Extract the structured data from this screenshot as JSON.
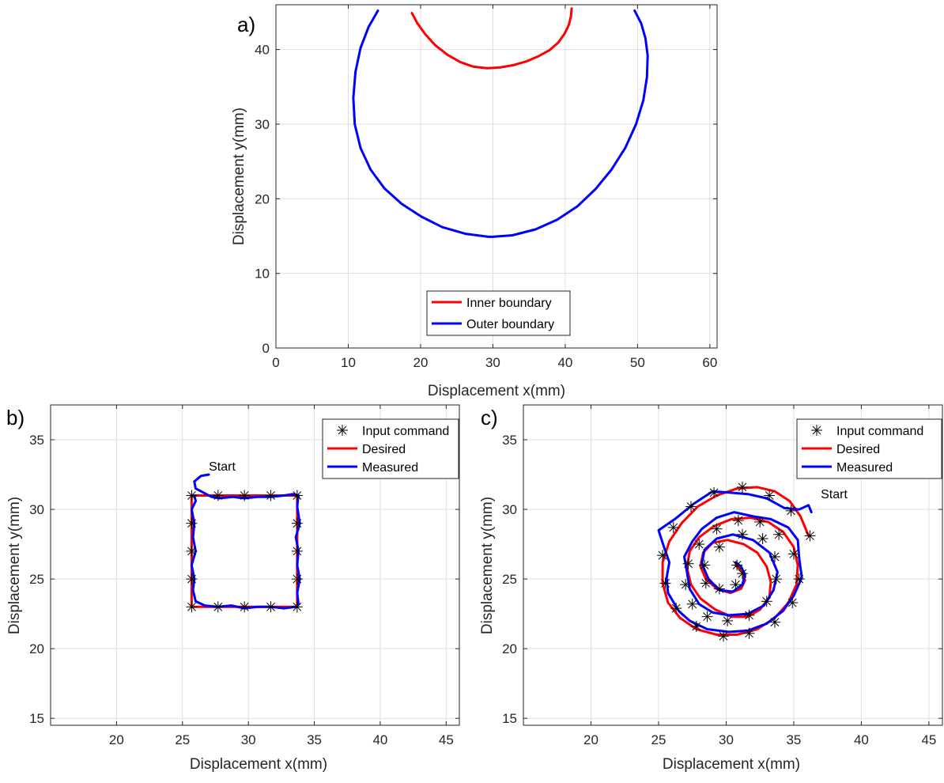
{
  "chart_data": [
    {
      "type": "line",
      "panel_label": "a)",
      "xlabel": "Displacement x(mm)",
      "ylabel": "Displacement y(mm)",
      "xlim": [
        0,
        61
      ],
      "ylim": [
        0,
        46
      ],
      "xticks": [
        0,
        10,
        20,
        30,
        40,
        50,
        60
      ],
      "yticks": [
        0,
        10,
        20,
        30,
        40
      ],
      "grid": true,
      "legend_position": "bottom-center",
      "series": [
        {
          "name": "Inner boundary",
          "color": "#ff0000",
          "x": [
            18.8,
            19.5,
            20.6,
            22.0,
            23.7,
            25.5,
            27.3,
            29.2,
            31.0,
            32.8,
            34.6,
            36.3,
            37.8,
            39.0,
            39.9,
            40.5,
            40.8,
            40.9
          ],
          "y": [
            44.9,
            43.6,
            42.1,
            40.6,
            39.3,
            38.3,
            37.7,
            37.5,
            37.6,
            37.9,
            38.4,
            39.1,
            39.9,
            40.9,
            42.1,
            43.3,
            44.5,
            45.5
          ]
        },
        {
          "name": "Outer boundary",
          "color": "#0000ff",
          "x": [
            14.1,
            12.8,
            11.7,
            11.0,
            10.7,
            10.9,
            11.7,
            13.1,
            15.0,
            17.4,
            20.1,
            23.0,
            26.2,
            29.4,
            30.0,
            32.7,
            35.9,
            38.9,
            41.7,
            44.2,
            46.4,
            48.3,
            49.8,
            50.8,
            51.3,
            51.4,
            51.1,
            50.5,
            49.6
          ],
          "y": [
            45.2,
            43.0,
            40.2,
            37.0,
            33.5,
            30.0,
            26.8,
            23.9,
            21.4,
            19.3,
            17.6,
            16.2,
            15.3,
            14.9,
            14.9,
            15.1,
            15.9,
            17.2,
            19.0,
            21.3,
            23.9,
            26.8,
            30.0,
            33.2,
            36.3,
            39.2,
            41.5,
            43.5,
            45.2
          ]
        }
      ]
    },
    {
      "type": "line",
      "panel_label": "b)",
      "xlabel": "Displacement x(mm)",
      "ylabel": "Displacement y(mm)",
      "xlim": [
        15,
        46
      ],
      "ylim": [
        14.5,
        37.5
      ],
      "xticks": [
        20,
        25,
        30,
        35,
        40,
        45
      ],
      "yticks": [
        15,
        20,
        25,
        30,
        35
      ],
      "grid": true,
      "legend_position": "top-right",
      "annotation": {
        "text": "Start",
        "x": 27.0,
        "y": 32.8
      },
      "series": [
        {
          "name": "Input command",
          "marker": "asterisk",
          "color": "#000000",
          "x": [
            25.7,
            27.7,
            29.7,
            31.7,
            33.7,
            33.7,
            33.7,
            33.7,
            33.7,
            31.7,
            29.7,
            27.7,
            25.7,
            25.7,
            25.7,
            25.7
          ],
          "y": [
            31.0,
            31.0,
            31.0,
            31.0,
            31.0,
            29.0,
            27.0,
            25.0,
            23.0,
            23.0,
            23.0,
            23.0,
            23.0,
            25.0,
            27.0,
            29.0
          ]
        },
        {
          "name": "Desired",
          "color": "#ff0000",
          "x": [
            25.7,
            33.7,
            33.7,
            25.7,
            25.7
          ],
          "y": [
            31.0,
            31.0,
            23.0,
            23.0,
            31.0
          ]
        },
        {
          "name": "Measured",
          "color": "#0000ff",
          "x": [
            27.0,
            26.4,
            25.9,
            26.0,
            26.6,
            27.2,
            27.8,
            28.8,
            29.7,
            30.7,
            31.7,
            32.7,
            33.4,
            33.8,
            33.7,
            33.9,
            33.6,
            33.8,
            33.7,
            33.9,
            33.7,
            33.8,
            33.6,
            32.7,
            31.7,
            30.7,
            29.7,
            28.7,
            27.7,
            26.7,
            26.0,
            25.8,
            25.9,
            25.7,
            26.0,
            25.8,
            25.9,
            25.7,
            26.0,
            25.9
          ],
          "y": [
            32.5,
            32.4,
            32.0,
            31.5,
            31.2,
            30.9,
            30.8,
            30.9,
            30.8,
            30.9,
            30.9,
            31.0,
            31.1,
            31.0,
            30.2,
            29.0,
            28.0,
            27.0,
            26.0,
            25.0,
            24.0,
            23.2,
            23.0,
            22.9,
            23.0,
            23.0,
            22.9,
            23.1,
            23.0,
            23.1,
            23.4,
            24.2,
            25.0,
            26.0,
            27.0,
            28.0,
            29.0,
            30.0,
            30.6,
            31.0
          ]
        }
      ]
    },
    {
      "type": "line",
      "panel_label": "c)",
      "xlabel": "Displacement x(mm)",
      "ylabel": "Displacement y(mm)",
      "xlim": [
        15,
        46
      ],
      "ylim": [
        14.5,
        37.5
      ],
      "xticks": [
        20,
        25,
        30,
        35,
        40,
        45
      ],
      "yticks": [
        15,
        20,
        25,
        30,
        35
      ],
      "grid": true,
      "legend_position": "top-right",
      "annotation": {
        "text": "Start",
        "x": 37.0,
        "y": 30.8
      },
      "series": [
        {
          "name": "Input command",
          "marker": "asterisk",
          "color": "#000000",
          "x": [
            36.2,
            34.8,
            33.2,
            31.2,
            29.1,
            27.4,
            26.1,
            25.3,
            25.5,
            26.3,
            27.8,
            29.8,
            31.7,
            33.6,
            34.9,
            35.4,
            35.0,
            33.9,
            32.5,
            30.9,
            29.3,
            28.0,
            27.2,
            27.0,
            27.5,
            28.6,
            30.1,
            31.7,
            33.0,
            33.7,
            33.6,
            32.7,
            31.2,
            29.5,
            28.4,
            28.5,
            29.5,
            30.7,
            31.2,
            30.8
          ],
          "y": [
            28.1,
            29.9,
            31.0,
            31.6,
            31.2,
            30.2,
            28.7,
            26.7,
            24.7,
            22.9,
            21.6,
            20.9,
            21.1,
            21.9,
            23.3,
            25.0,
            26.8,
            28.2,
            29.1,
            29.2,
            28.6,
            27.5,
            26.1,
            24.6,
            23.2,
            22.3,
            22.0,
            22.4,
            23.4,
            25.0,
            26.6,
            27.9,
            28.2,
            27.3,
            26.0,
            24.7,
            24.3,
            24.6,
            25.4,
            26.0
          ]
        },
        {
          "name": "Desired",
          "color": "#ff0000",
          "x": [
            36.1,
            35.5,
            34.7,
            33.6,
            32.3,
            30.8,
            29.3,
            27.9,
            26.7,
            25.8,
            25.3,
            25.3,
            25.7,
            26.6,
            27.8,
            29.3,
            30.8,
            32.3,
            33.6,
            34.6,
            35.2,
            35.3,
            35.0,
            34.2,
            33.1,
            31.8,
            30.4,
            29.1,
            28.0,
            27.3,
            27.1,
            27.4,
            28.1,
            29.2,
            30.4,
            31.6,
            32.5,
            33.2,
            33.3,
            33.0,
            32.3,
            31.3,
            30.1,
            29.0,
            28.3,
            28.1,
            28.5,
            29.3,
            30.3,
            31.1,
            31.4,
            31.2,
            30.7
          ],
          "y": [
            28.1,
            29.5,
            30.6,
            31.3,
            31.6,
            31.5,
            31.0,
            30.2,
            29.0,
            27.7,
            26.2,
            24.7,
            23.3,
            22.2,
            21.4,
            21.0,
            21.0,
            21.4,
            22.2,
            23.3,
            24.6,
            26.0,
            27.3,
            28.4,
            29.1,
            29.4,
            29.3,
            28.8,
            28.0,
            27.0,
            25.8,
            24.6,
            23.6,
            22.8,
            22.3,
            22.3,
            22.8,
            23.7,
            24.8,
            25.9,
            26.9,
            27.5,
            27.8,
            27.6,
            26.9,
            25.9,
            25.0,
            24.3,
            24.0,
            24.3,
            24.9,
            25.5,
            26.0
          ]
        },
        {
          "name": "Measured",
          "color": "#0000ff",
          "x": [
            36.3,
            36.1,
            35.4,
            34.3,
            33.0,
            31.6,
            30.3,
            29.0,
            27.6,
            26.2,
            25.0,
            25.4,
            25.8,
            25.6,
            25.7,
            26.5,
            27.3,
            28.6,
            30.2,
            31.6,
            33.0,
            34.2,
            35.0,
            35.6,
            35.4,
            35.3,
            34.6,
            33.3,
            32.0,
            30.6,
            29.3,
            28.2,
            27.5,
            26.9,
            27.1,
            27.3,
            28.0,
            29.0,
            30.2,
            31.6,
            32.8,
            33.5,
            33.8,
            33.2,
            32.0,
            30.5,
            29.3,
            28.4,
            28.2,
            28.7,
            29.5,
            30.5,
            31.2,
            31.4,
            31.1,
            30.7
          ],
          "y": [
            29.8,
            30.3,
            30.0,
            30.1,
            30.8,
            31.1,
            31.2,
            31.3,
            30.4,
            29.3,
            28.5,
            27.3,
            26.2,
            25.1,
            24.0,
            22.7,
            22.0,
            21.4,
            21.2,
            21.3,
            21.8,
            22.7,
            23.8,
            25.1,
            26.5,
            27.8,
            28.7,
            29.3,
            29.5,
            29.8,
            29.4,
            28.6,
            27.7,
            26.6,
            25.5,
            24.3,
            23.2,
            22.6,
            22.4,
            22.5,
            23.1,
            24.2,
            25.5,
            26.9,
            27.8,
            28.2,
            27.9,
            27.1,
            26.1,
            25.0,
            24.2,
            24.1,
            24.6,
            25.3,
            25.9,
            26.2
          ]
        }
      ]
    }
  ]
}
